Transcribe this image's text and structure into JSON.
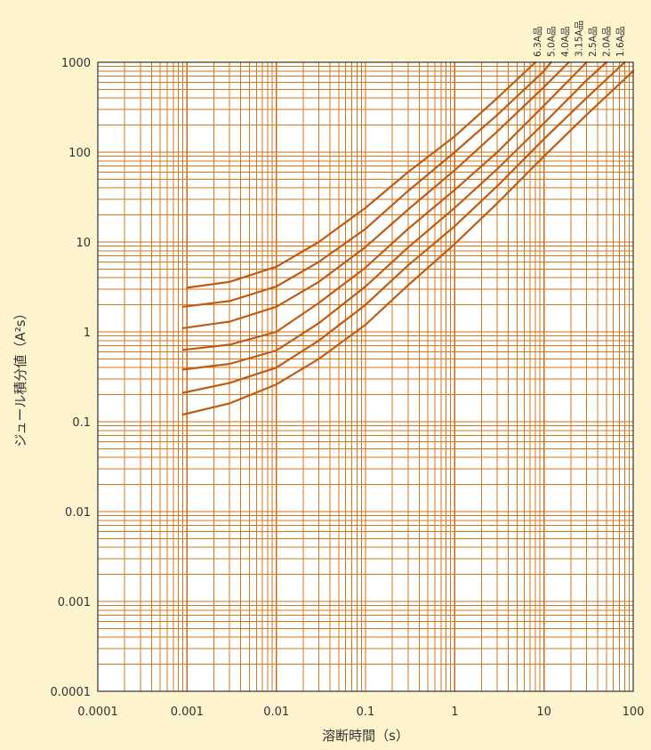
{
  "chart_data": {
    "type": "line",
    "title": "",
    "xlabel": "溶断時間（s）",
    "ylabel": "ジュール積分値（A²s）",
    "x_scale": "log",
    "y_scale": "log",
    "xlim": [
      0.0001,
      100
    ],
    "ylim": [
      0.0001,
      1000
    ],
    "grid": true,
    "legend_position": "top-right, labels rotated above curve ends",
    "colors": {
      "background": "#fdf3cc",
      "plot_area": "#ffffff",
      "grid": "#d6771f",
      "series": "#bf5b12"
    },
    "x_tick_labels": [
      "0.0001",
      "0.001",
      "0.01",
      "0.1",
      "1",
      "10",
      "100"
    ],
    "y_tick_labels": [
      "0.0001",
      "0.001",
      "0.01",
      "0.1",
      "1",
      "10",
      "100",
      "1000"
    ],
    "series_labels_order": [
      "6.3A品",
      "5.0A品",
      "4.0A品",
      "3.15A品",
      "2.5A品",
      "2.0A品",
      "1.6A品"
    ],
    "series": [
      {
        "name": "6.3A品",
        "x": [
          0.001,
          0.003,
          0.01,
          0.03,
          0.1,
          0.3,
          1,
          3,
          8
        ],
        "y": [
          3.1,
          3.6,
          5.3,
          10,
          24,
          60,
          150,
          400,
          1000
        ]
      },
      {
        "name": "5.0A品",
        "x": [
          0.0009,
          0.003,
          0.01,
          0.03,
          0.1,
          0.3,
          1,
          3,
          10,
          12
        ],
        "y": [
          1.9,
          2.2,
          3.2,
          6,
          14,
          37,
          100,
          260,
          800,
          1000
        ]
      },
      {
        "name": "4.0A品",
        "x": [
          0.0009,
          0.003,
          0.01,
          0.03,
          0.1,
          0.3,
          1,
          3,
          10,
          19
        ],
        "y": [
          1.1,
          1.3,
          1.9,
          3.6,
          8.8,
          23,
          63,
          170,
          530,
          1000
        ]
      },
      {
        "name": "3.15A品",
        "x": [
          0.0009,
          0.003,
          0.01,
          0.03,
          0.1,
          0.3,
          1,
          3,
          10,
          30
        ],
        "y": [
          0.63,
          0.72,
          1.0,
          2.1,
          5.2,
          14,
          38,
          100,
          330,
          1000
        ]
      },
      {
        "name": "2.5A品",
        "x": [
          0.0009,
          0.003,
          0.01,
          0.03,
          0.1,
          0.3,
          1,
          3,
          10,
          30,
          50
        ],
        "y": [
          0.38,
          0.44,
          0.62,
          1.25,
          3.2,
          8.7,
          24,
          65,
          210,
          630,
          1000
        ]
      },
      {
        "name": "2.0A品",
        "x": [
          0.0009,
          0.003,
          0.01,
          0.03,
          0.1,
          0.3,
          1,
          3,
          10,
          30,
          80
        ],
        "y": [
          0.21,
          0.27,
          0.4,
          0.8,
          2.0,
          5.5,
          15,
          42,
          140,
          400,
          1000
        ]
      },
      {
        "name": "1.6A品",
        "x": [
          0.0009,
          0.003,
          0.01,
          0.03,
          0.1,
          0.3,
          1,
          3,
          10,
          30,
          100
        ],
        "y": [
          0.12,
          0.16,
          0.26,
          0.5,
          1.2,
          3.3,
          9.5,
          27,
          90,
          260,
          800
        ]
      }
    ]
  }
}
